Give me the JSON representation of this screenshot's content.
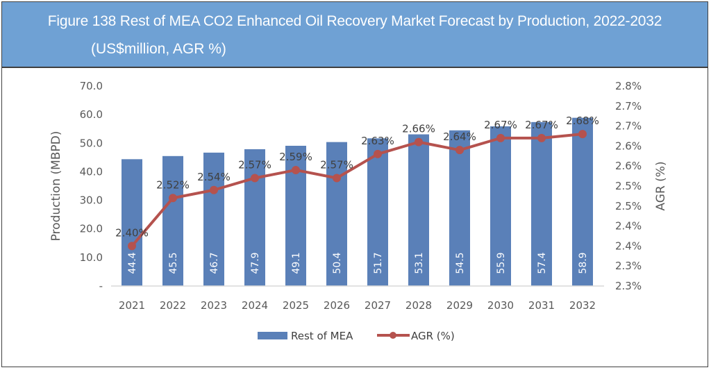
{
  "header": {
    "title_line1": "Figure 138 Rest of MEA CO2 Enhanced Oil Recovery Market Forecast by Production, 2022-2032",
    "title_line2": "(US$million, AGR %)",
    "background_color": "#6fa1d4"
  },
  "chart_data": {
    "type": "bar+line",
    "title": "Figure 138 Rest of MEA CO2 Enhanced Oil Recovery Market Forecast by Production, 2022-2032 (US$million, AGR %)",
    "categories": [
      "2021",
      "2022",
      "2023",
      "2024",
      "2025",
      "2026",
      "2027",
      "2028",
      "2029",
      "2030",
      "2031",
      "2032"
    ],
    "series": [
      {
        "name": "Rest of MEA",
        "type": "bar",
        "axis": "left",
        "color": "#5a80b8",
        "values": [
          44.4,
          45.5,
          46.7,
          47.9,
          49.1,
          50.4,
          51.7,
          53.1,
          54.5,
          55.9,
          57.4,
          58.9
        ],
        "labels": [
          "44.4",
          "45.5",
          "46.7",
          "47.9",
          "49.1",
          "50.4",
          "51.7",
          "53.1",
          "54.5",
          "55.9",
          "57.4",
          "58.9"
        ]
      },
      {
        "name": "AGR (%)",
        "type": "line",
        "axis": "right",
        "color": "#b5524e",
        "values": [
          2.4,
          2.52,
          2.54,
          2.57,
          2.59,
          2.57,
          2.63,
          2.66,
          2.64,
          2.67,
          2.67,
          2.68
        ],
        "labels": [
          "2.40%",
          "2.52%",
          "2.54%",
          "2.57%",
          "2.59%",
          "2.57%",
          "2.63%",
          "2.66%",
          "2.64%",
          "2.67%",
          "2.67%",
          "2.68%"
        ]
      }
    ],
    "ylabel": "Production (MBPD)",
    "ylim": [
      0,
      70
    ],
    "yticks": [
      "-",
      "10.0",
      "20.0",
      "30.0",
      "40.0",
      "50.0",
      "60.0",
      "70.0"
    ],
    "y2label": "AGR (%)",
    "y2lim": [
      2.3,
      2.8
    ],
    "y2ticks": [
      "2.3%",
      "2.3%",
      "2.4%",
      "2.4%",
      "2.5%",
      "2.5%",
      "2.6%",
      "2.6%",
      "2.7%",
      "2.7%",
      "2.8%"
    ],
    "xlabel": "",
    "grid": false,
    "legend": {
      "position": "bottom",
      "entries": [
        "Rest of MEA",
        "AGR (%)"
      ]
    }
  }
}
